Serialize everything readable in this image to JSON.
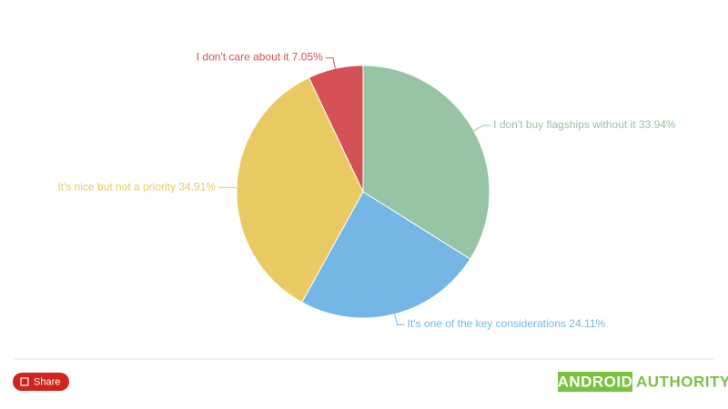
{
  "chart_data": {
    "type": "pie",
    "categories": [
      "I don't buy flagships without it",
      "It's one of the key considerations",
      "It's nice but not a priority",
      "I don't care about it"
    ],
    "values": [
      33.94,
      24.11,
      34.91,
      7.05
    ],
    "value_labels": [
      "33.94%",
      "24.11%",
      "34.91%",
      "7.05%"
    ],
    "colors": [
      "#96c4a5",
      "#74b7e6",
      "#e9ca62",
      "#d35155"
    ]
  },
  "footer": {
    "share": "Share",
    "brand_a": "ANDROID",
    "brand_b": "AUTHORITY"
  }
}
